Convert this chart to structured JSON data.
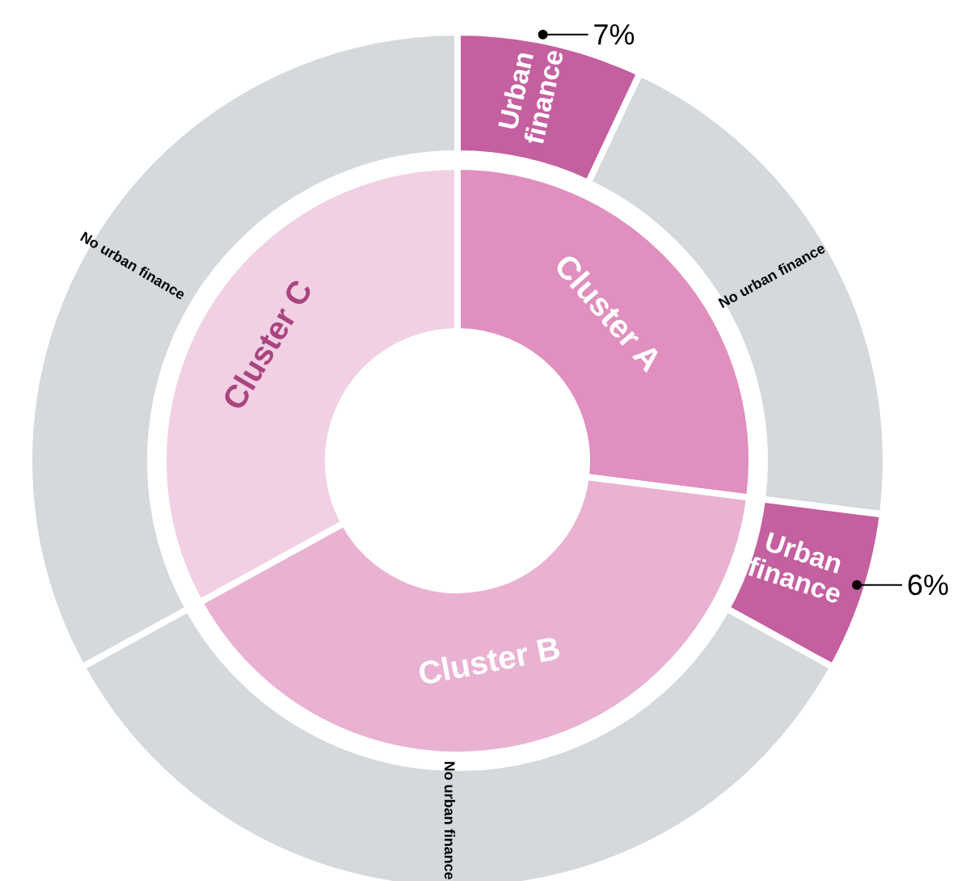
{
  "chart_data": [
    {
      "type": "donut",
      "categories": [
        "Cluster A",
        "Cluster B",
        "Cluster C"
      ],
      "values": [
        27,
        40,
        33
      ],
      "colors": [
        "#e08fbf",
        "#e9b2d3",
        "#f2d0e4"
      ]
    },
    {
      "type": "donut",
      "categories": [
        "Urban finance",
        "No urban finance",
        "Urban finance",
        "No urban finance",
        "No urban finance"
      ],
      "values": [
        7,
        20,
        6,
        34,
        33
      ],
      "colors": [
        "#c4609f",
        "#d5d9dc",
        "#c4609f",
        "#d5d9dc",
        "#d5d9dc"
      ],
      "value_labels": [
        "7%",
        null,
        "6%",
        null,
        null
      ]
    }
  ]
}
